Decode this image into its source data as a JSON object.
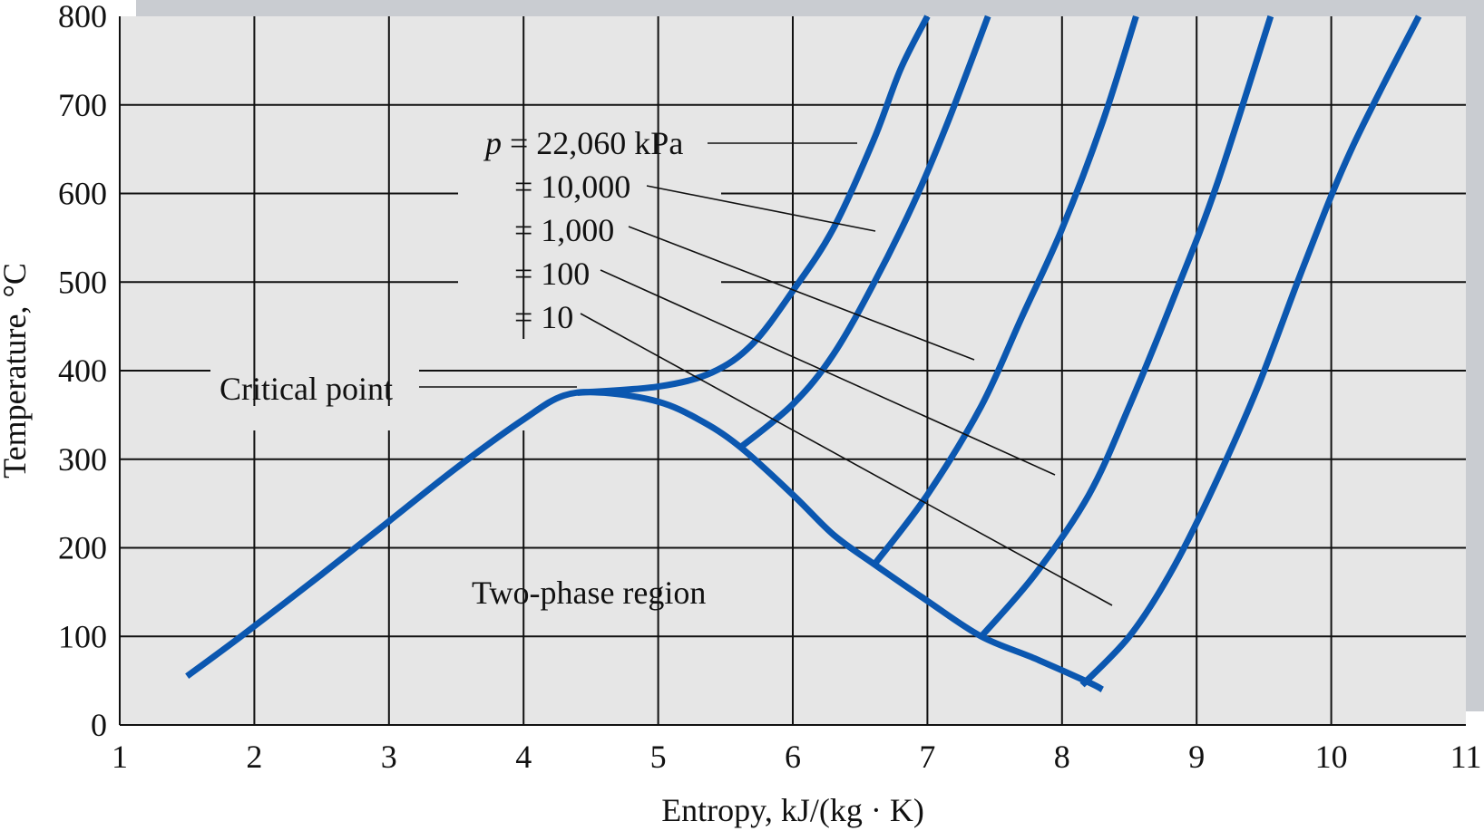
{
  "chart_data": {
    "type": "line",
    "xlabel": "Entropy, kJ/(kg · K)",
    "ylabel": "Temperature, °C",
    "xlim": [
      1,
      11
    ],
    "ylim": [
      0,
      800
    ],
    "x_ticks": [
      "1",
      "2",
      "3",
      "4",
      "5",
      "6",
      "7",
      "8",
      "9",
      "10",
      "11"
    ],
    "y_ticks": [
      "0",
      "100",
      "200",
      "300",
      "400",
      "500",
      "600",
      "700",
      "800"
    ],
    "grid": true,
    "line_color": "#0b57b0",
    "plot_background": "#e6e6e6",
    "shadow_color": "#c9ccd1",
    "saturation_dome": {
      "points": [
        [
          1.5,
          55
        ],
        [
          1.9,
          100
        ],
        [
          2.5,
          170
        ],
        [
          3.0,
          230
        ],
        [
          3.5,
          290
        ],
        [
          4.0,
          345
        ],
        [
          4.3,
          372
        ],
        [
          4.6,
          375
        ],
        [
          5.0,
          365
        ],
        [
          5.3,
          345
        ],
        [
          5.6,
          315
        ],
        [
          6.0,
          260
        ],
        [
          6.3,
          215
        ],
        [
          6.6,
          182
        ],
        [
          7.0,
          140
        ],
        [
          7.4,
          100
        ],
        [
          7.8,
          75
        ],
        [
          8.2,
          48
        ],
        [
          8.3,
          40
        ]
      ]
    },
    "isobars": [
      {
        "name": "22,060 kPa",
        "points": [
          [
            4.4,
            375
          ],
          [
            5.0,
            382
          ],
          [
            5.4,
            398
          ],
          [
            5.7,
            430
          ],
          [
            6.0,
            490
          ],
          [
            6.3,
            560
          ],
          [
            6.6,
            660
          ],
          [
            6.8,
            740
          ],
          [
            7.0,
            800
          ]
        ]
      },
      {
        "name": "10,000",
        "points": [
          [
            5.6,
            312
          ],
          [
            6.0,
            362
          ],
          [
            6.3,
            418
          ],
          [
            6.6,
            498
          ],
          [
            6.9,
            590
          ],
          [
            7.15,
            680
          ],
          [
            7.45,
            800
          ]
        ]
      },
      {
        "name": "1,000",
        "points": [
          [
            6.6,
            180
          ],
          [
            7.0,
            260
          ],
          [
            7.4,
            360
          ],
          [
            7.7,
            460
          ],
          [
            8.0,
            560
          ],
          [
            8.3,
            680
          ],
          [
            8.55,
            800
          ]
        ]
      },
      {
        "name": "100",
        "points": [
          [
            7.4,
            100
          ],
          [
            7.8,
            170
          ],
          [
            8.2,
            260
          ],
          [
            8.5,
            360
          ],
          [
            8.85,
            490
          ],
          [
            9.15,
            610
          ],
          [
            9.55,
            800
          ]
        ]
      },
      {
        "name": "10",
        "points": [
          [
            8.15,
            45
          ],
          [
            8.5,
            100
          ],
          [
            8.8,
            170
          ],
          [
            9.1,
            260
          ],
          [
            9.45,
            380
          ],
          [
            9.8,
            520
          ],
          [
            10.15,
            650
          ],
          [
            10.65,
            800
          ]
        ]
      }
    ],
    "annotations": {
      "p_prefix": "p",
      "p_rest": " = 22,060 kPa",
      "p10000": "= 10,000",
      "p1000": "= 1,000",
      "p100": "= 100",
      "p10": "= 10",
      "critical_point": "Critical point",
      "two_phase": "Two-phase region"
    }
  }
}
